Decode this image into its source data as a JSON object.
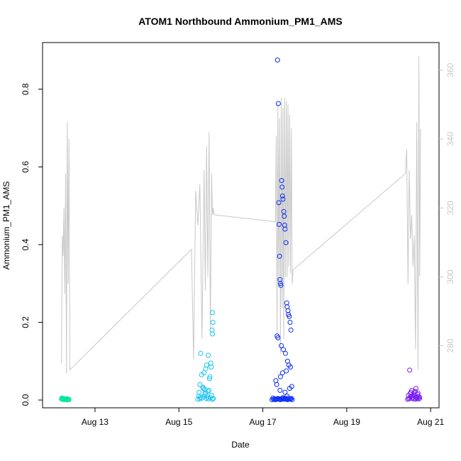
{
  "chart_data": {
    "type": "scatter",
    "title": "ATOM1 Northbound Ammonium_PM1_AMS",
    "xlabel": "Date",
    "ylabel": "Ammonium_PM1_AMS",
    "x_ticks": [
      "Aug 13",
      "Aug 15",
      "Aug 17",
      "Aug 19",
      "Aug 21"
    ],
    "x_tick_values": [
      13,
      15,
      17,
      19,
      21
    ],
    "xlim": [
      11.75,
      21.2
    ],
    "ylim": [
      -0.02,
      0.92
    ],
    "y_ticks": [
      "0.0",
      "0.2",
      "0.4",
      "0.6",
      "0.8"
    ],
    "y_tick_values": [
      0.0,
      0.2,
      0.4,
      0.6,
      0.8
    ],
    "y2lim": [
      262,
      368
    ],
    "y2_ticks": [
      "280",
      "300",
      "320",
      "340",
      "360"
    ],
    "y2_tick_values": [
      280,
      300,
      320,
      340,
      360
    ],
    "grid": false,
    "colors": {
      "group1": "#00e5a0",
      "group2": "#17c2f2",
      "group3": "#0b2cf5",
      "group4": "#7b1ff2",
      "line": "#c8c8c8",
      "axis": "#000000",
      "right_axis": "#c8c8c8"
    },
    "series": [
      {
        "color_key": "group1",
        "x": [
          12.2,
          12.22,
          12.24,
          12.26,
          12.28,
          12.3,
          12.32,
          12.34,
          12.36,
          12.38,
          12.21,
          12.25,
          12.29,
          12.33,
          12.37
        ],
        "y": [
          0.003,
          0.002,
          0.004,
          0.001,
          0.003,
          0.002,
          0.001,
          0.003,
          0.002,
          0.001,
          0.005,
          0.002,
          0.003,
          0.001,
          0.002
        ]
      },
      {
        "color_key": "group2",
        "x": [
          15.45,
          15.5,
          15.55,
          15.6,
          15.65,
          15.7,
          15.75,
          15.8,
          15.82,
          15.48,
          15.58,
          15.62,
          15.68,
          15.72,
          15.78,
          15.52,
          15.66,
          15.74,
          15.8,
          15.81,
          15.8,
          15.79,
          15.76,
          15.7,
          15.64,
          15.6,
          15.54,
          15.57,
          15.63,
          15.47,
          15.51,
          15.69,
          15.73,
          15.77,
          15.5,
          15.61
        ],
        "y": [
          0.002,
          0.003,
          0.005,
          0.01,
          0.004,
          0.003,
          0.006,
          0.002,
          0.004,
          0.02,
          0.03,
          0.015,
          0.008,
          0.025,
          0.012,
          0.12,
          0.09,
          0.06,
          0.17,
          0.2,
          0.225,
          0.18,
          0.095,
          0.115,
          0.08,
          0.07,
          0.065,
          0.033,
          0.018,
          0.01,
          0.007,
          0.022,
          0.055,
          0.085,
          0.04,
          0.028
        ]
      },
      {
        "color_key": "group3",
        "x": [
          17.22,
          17.26,
          17.3,
          17.34,
          17.38,
          17.42,
          17.46,
          17.5,
          17.54,
          17.58,
          17.62,
          17.66,
          17.7,
          17.24,
          17.28,
          17.32,
          17.36,
          17.4,
          17.44,
          17.48,
          17.52,
          17.56,
          17.6,
          17.64,
          17.68,
          17.35,
          17.37,
          17.38,
          17.39,
          17.4,
          17.41,
          17.42,
          17.43,
          17.45,
          17.46,
          17.47,
          17.48,
          17.5,
          17.51,
          17.52,
          17.53,
          17.55,
          17.57,
          17.58,
          17.6,
          17.61,
          17.63,
          17.65,
          17.67,
          17.34,
          17.36,
          17.44,
          17.49,
          17.54,
          17.59,
          17.62,
          17.66,
          17.31,
          17.33,
          17.69,
          17.42,
          17.47,
          17.56,
          17.64,
          17.41,
          17.53,
          17.58
        ],
        "y": [
          0.001,
          0.002,
          0.001,
          0.003,
          0.002,
          0.001,
          0.004,
          0.002,
          0.003,
          0.001,
          0.002,
          0.003,
          0.001,
          0.005,
          0.003,
          0.002,
          0.004,
          0.003,
          0.002,
          0.006,
          0.004,
          0.003,
          0.005,
          0.002,
          0.004,
          0.875,
          0.763,
          0.508,
          0.452,
          0.37,
          0.31,
          0.3,
          0.295,
          0.565,
          0.548,
          0.525,
          0.517,
          0.485,
          0.473,
          0.45,
          0.44,
          0.405,
          0.25,
          0.24,
          0.23,
          0.22,
          0.215,
          0.2,
          0.18,
          0.165,
          0.16,
          0.14,
          0.13,
          0.12,
          0.1,
          0.09,
          0.085,
          0.05,
          0.04,
          0.035,
          0.06,
          0.07,
          0.075,
          0.03,
          0.025,
          0.02,
          0.01
        ]
      },
      {
        "color_key": "group4",
        "x": [
          20.45,
          20.48,
          20.5,
          20.52,
          20.54,
          20.56,
          20.58,
          20.6,
          20.62,
          20.64,
          20.66,
          20.68,
          20.7,
          20.72,
          20.74,
          20.5,
          20.55,
          20.6,
          20.65,
          20.7,
          20.47,
          20.53,
          20.63,
          20.69,
          20.73,
          20.51,
          20.57,
          20.61,
          20.67
        ],
        "y": [
          0.002,
          0.003,
          0.005,
          0.008,
          0.01,
          0.004,
          0.006,
          0.003,
          0.012,
          0.002,
          0.007,
          0.004,
          0.009,
          0.003,
          0.005,
          0.077,
          0.025,
          0.015,
          0.03,
          0.018,
          0.012,
          0.02,
          0.022,
          0.014,
          0.008,
          0.016,
          0.011,
          0.019,
          0.006
        ]
      }
    ],
    "line_series": {
      "color_key": "line",
      "x": [
        12.2,
        12.22,
        12.24,
        12.26,
        12.28,
        12.3,
        12.32,
        12.34,
        12.36,
        12.38,
        12.4,
        15.3,
        15.35,
        15.4,
        15.45,
        15.5,
        15.55,
        15.6,
        15.63,
        15.66,
        15.69,
        15.72,
        15.75,
        15.78,
        15.8,
        15.82,
        15.84,
        17.3,
        17.32,
        17.34,
        17.36,
        17.38,
        17.4,
        17.42,
        17.44,
        17.46,
        17.48,
        17.5,
        17.52,
        17.54,
        17.56,
        17.58,
        17.6,
        17.62,
        17.64,
        17.66,
        17.68,
        17.7,
        17.72,
        20.4,
        20.43,
        20.46,
        20.49,
        20.52,
        20.55,
        20.58,
        20.61,
        20.64,
        20.67,
        20.7,
        20.72,
        20.74,
        20.76
      ],
      "y": [
        275,
        312,
        306,
        320,
        295,
        330,
        272,
        345,
        298,
        340,
        273,
        308,
        276,
        325,
        315,
        327,
        282,
        331,
        296,
        338,
        300,
        342,
        285,
        330,
        318,
        320,
        318,
        316,
        341,
        283,
        350,
        299,
        346,
        278,
        352,
        291,
        349,
        282,
        352,
        300,
        351,
        300,
        350,
        303,
        347,
        301,
        343,
        298,
        302,
        330,
        337,
        298,
        331,
        311,
        318,
        303,
        312,
        279,
        345,
        273,
        364,
        300,
        343
      ]
    }
  }
}
